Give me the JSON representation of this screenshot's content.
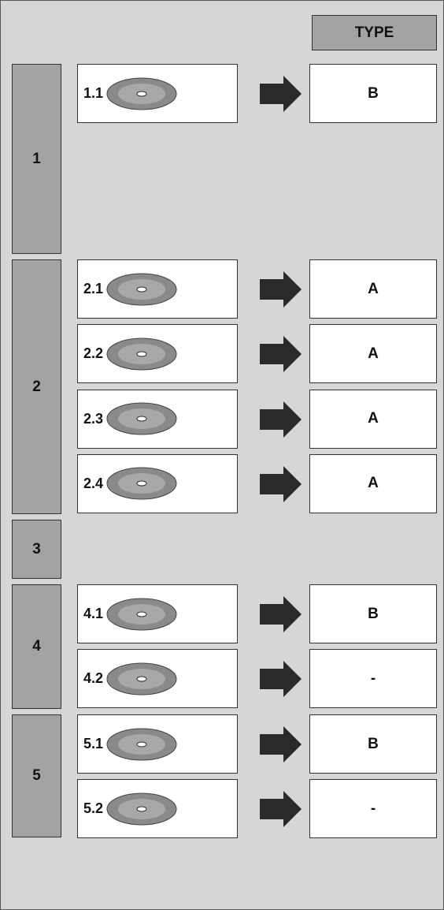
{
  "header": {
    "type_label": "TYPE"
  },
  "groups": [
    {
      "label": "1",
      "items": [
        {
          "label": "1.1",
          "type": "B"
        }
      ]
    },
    {
      "label": "2",
      "items": [
        {
          "label": "2.1",
          "type": "A"
        },
        {
          "label": "2.2",
          "type": "A"
        },
        {
          "label": "2.3",
          "type": "A"
        },
        {
          "label": "2.4",
          "type": "A"
        }
      ]
    },
    {
      "label": "3",
      "items": []
    },
    {
      "label": "4",
      "items": [
        {
          "label": "4.1",
          "type": "B"
        },
        {
          "label": "4.2",
          "type": "-"
        }
      ]
    },
    {
      "label": "5",
      "items": [
        {
          "label": "5.1",
          "type": "B"
        },
        {
          "label": "5.2",
          "type": "-"
        }
      ]
    }
  ]
}
